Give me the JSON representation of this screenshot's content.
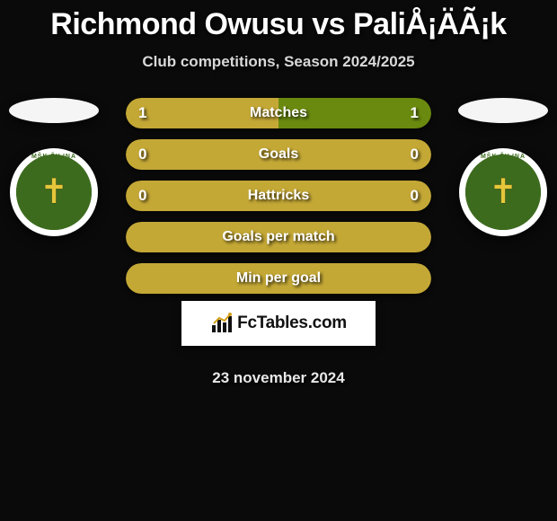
{
  "header": {
    "title": "Richmond Owusu vs PaliÅ¡ÄÃ¡k",
    "subtitle": "Club competitions, Season 2024/2025"
  },
  "players": {
    "left": {
      "club_badge_text": "MŠK ŽILINA"
    },
    "right": {
      "club_badge_text": "MŠK ŽILINA"
    }
  },
  "stats": [
    {
      "label": "Matches",
      "left_value": "1",
      "right_value": "1",
      "left_pct": 50,
      "right_pct": 50,
      "left_color": "#c4a836",
      "right_color": "#6a8a0f",
      "full": false
    },
    {
      "label": "Goals",
      "left_value": "0",
      "right_value": "0",
      "left_pct": 0,
      "right_pct": 0,
      "left_color": "#c4a836",
      "right_color": "#6a8a0f",
      "full": true,
      "full_color": "#c4a836"
    },
    {
      "label": "Hattricks",
      "left_value": "0",
      "right_value": "0",
      "left_pct": 0,
      "right_pct": 0,
      "left_color": "#c4a836",
      "right_color": "#6a8a0f",
      "full": true,
      "full_color": "#c4a836"
    },
    {
      "label": "Goals per match",
      "left_value": "",
      "right_value": "",
      "left_pct": 0,
      "right_pct": 0,
      "left_color": "#c4a836",
      "right_color": "#6a8a0f",
      "full": true,
      "full_color": "#c4a836"
    },
    {
      "label": "Min per goal",
      "left_value": "",
      "right_value": "",
      "left_pct": 0,
      "right_pct": 0,
      "left_color": "#c4a836",
      "right_color": "#6a8a0f",
      "full": true,
      "full_color": "#c4a836"
    }
  ],
  "brand": {
    "text": "FcTables.com",
    "icon_name": "bar-chart-icon"
  },
  "footer": {
    "date": "23 november 2024"
  },
  "colors": {
    "background": "#0a0a0a",
    "title": "#ffffff",
    "subtitle": "#d8d8d8",
    "badge_ring": "#ffffff",
    "badge_inner": "#3d6b1e",
    "badge_cross": "#e5c63a",
    "flag": "#f5f5f5",
    "brand_bg": "#ffffff",
    "brand_text": "#111111",
    "pill_left": "#c4a836",
    "pill_right": "#6a8a0f"
  }
}
